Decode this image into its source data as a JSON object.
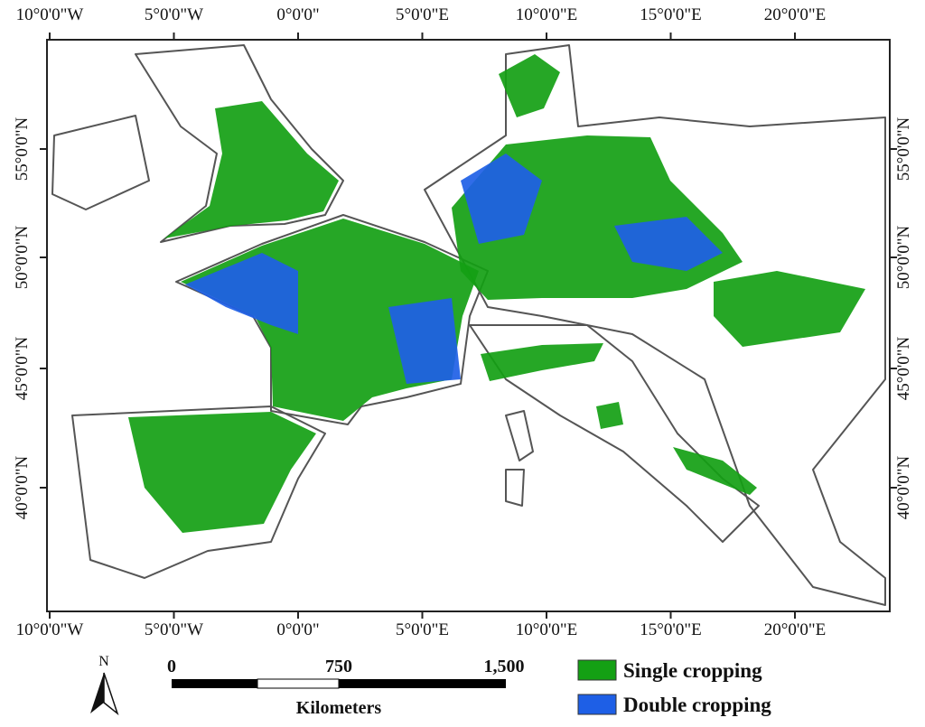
{
  "map": {
    "longitude_labels": [
      "10°0'0\"W",
      "5°0'0\"W",
      "0°0'0\"",
      "5°0'0\"E",
      "10°0'0\"E",
      "15°0'0\"E",
      "20°0'0\"E"
    ],
    "latitude_labels": [
      "55°0'0\"N",
      "50°0'0\"N",
      "45°0'0\"N",
      "40°0'0\"N"
    ],
    "north_label": "N",
    "scale_bar": {
      "labels": [
        "0",
        "750",
        "1,500"
      ],
      "unit": "Kilometers"
    },
    "legend": [
      {
        "label": "Single cropping",
        "color": "#14a014"
      },
      {
        "label": "Double cropping",
        "color": "#1e5fe6"
      }
    ]
  }
}
